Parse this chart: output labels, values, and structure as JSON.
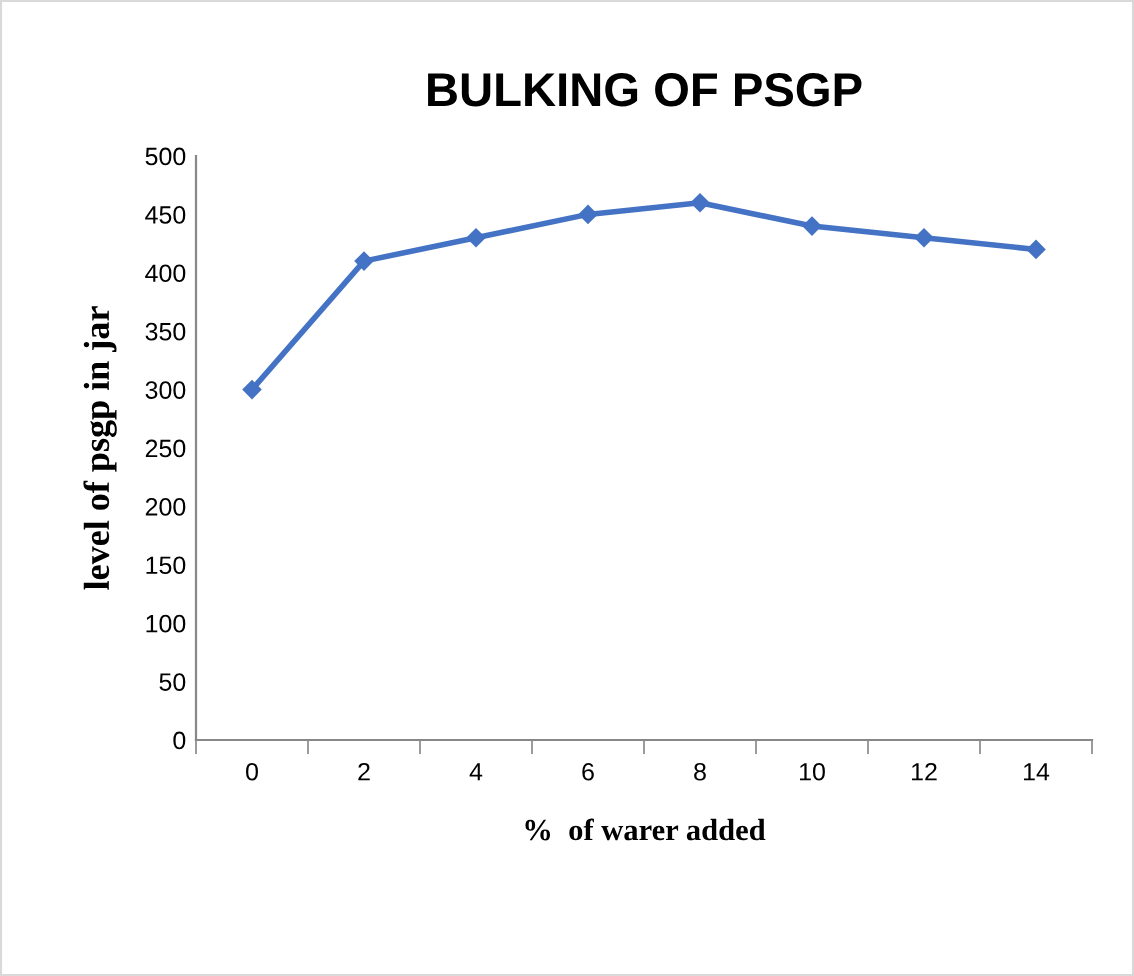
{
  "chart_data": {
    "type": "line",
    "title": "BULKING OF PSGP",
    "xlabel": "%  of warer added",
    "ylabel": "level of psgp in jar",
    "categories": [
      "0",
      "2",
      "4",
      "6",
      "8",
      "10",
      "12",
      "14"
    ],
    "series": [
      {
        "color": "#4472c4",
        "values": [
          300,
          410,
          430,
          450,
          460,
          440,
          430,
          420
        ]
      }
    ],
    "ylim": [
      0,
      500
    ],
    "yticks": [
      0,
      50,
      100,
      150,
      200,
      250,
      300,
      350,
      400,
      450,
      500
    ],
    "grid": false,
    "legend": false,
    "marker": "diamond",
    "line_style": "solid"
  }
}
